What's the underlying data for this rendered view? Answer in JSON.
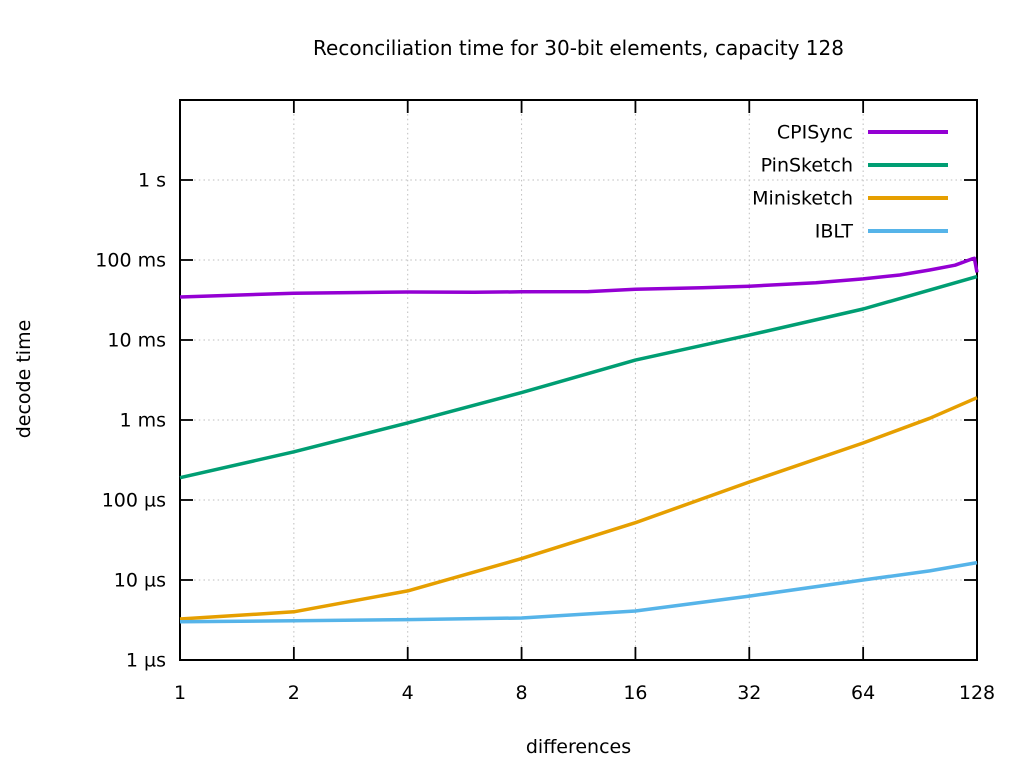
{
  "chart_data": {
    "type": "line",
    "title": "Reconciliation time for 30-bit elements, capacity 128",
    "xlabel": "differences",
    "ylabel": "decode time",
    "x_scale": "log2",
    "y_scale": "log10",
    "x_range": [
      1,
      128
    ],
    "y_range_microseconds": [
      1,
      10000000
    ],
    "grid": true,
    "legend_position": "top-right-inside",
    "x_ticks": [
      {
        "value": 1,
        "label": "1"
      },
      {
        "value": 2,
        "label": "2"
      },
      {
        "value": 4,
        "label": "4"
      },
      {
        "value": 8,
        "label": "8"
      },
      {
        "value": 16,
        "label": "16"
      },
      {
        "value": 32,
        "label": "32"
      },
      {
        "value": 64,
        "label": "64"
      },
      {
        "value": 128,
        "label": "128"
      }
    ],
    "y_ticks": [
      {
        "value_us": 1000000,
        "label": "1 s"
      },
      {
        "value_us": 100000,
        "label": "100 ms"
      },
      {
        "value_us": 10000,
        "label": "10 ms"
      },
      {
        "value_us": 1000,
        "label": "1 ms"
      },
      {
        "value_us": 100,
        "label": "100 µs"
      },
      {
        "value_us": 10,
        "label": "10 µs"
      },
      {
        "value_us": 1,
        "label": "1 µs"
      }
    ],
    "series": [
      {
        "name": "CPISync",
        "color": "#9400d3",
        "points_x_vs_us": [
          [
            1,
            34500
          ],
          [
            2,
            38500
          ],
          [
            3,
            39200
          ],
          [
            4,
            39800
          ],
          [
            6,
            39500
          ],
          [
            8,
            40000
          ],
          [
            12,
            40300
          ],
          [
            16,
            43000
          ],
          [
            24,
            45000
          ],
          [
            32,
            47000
          ],
          [
            48,
            52000
          ],
          [
            64,
            58000
          ],
          [
            80,
            65000
          ],
          [
            96,
            75000
          ],
          [
            112,
            86000
          ],
          [
            124,
            103000
          ],
          [
            126,
            105000
          ],
          [
            128,
            70000
          ]
        ]
      },
      {
        "name": "PinSketch",
        "color": "#009e73",
        "points_x_vs_us": [
          [
            1,
            190
          ],
          [
            2,
            400
          ],
          [
            4,
            920
          ],
          [
            8,
            2200
          ],
          [
            16,
            5600
          ],
          [
            32,
            11500
          ],
          [
            64,
            24400
          ],
          [
            96,
            42000
          ],
          [
            128,
            62000
          ]
        ]
      },
      {
        "name": "Minisketch",
        "color": "#e69f00",
        "points_x_vs_us": [
          [
            1,
            3.25
          ],
          [
            2,
            4.0
          ],
          [
            4,
            7.3
          ],
          [
            8,
            18.5
          ],
          [
            16,
            52
          ],
          [
            32,
            168
          ],
          [
            64,
            516
          ],
          [
            96,
            1050
          ],
          [
            128,
            1900
          ]
        ]
      },
      {
        "name": "IBLT",
        "color": "#56b4e9",
        "points_x_vs_us": [
          [
            1,
            3.0
          ],
          [
            2,
            3.1
          ],
          [
            4,
            3.2
          ],
          [
            8,
            3.35
          ],
          [
            16,
            4.1
          ],
          [
            32,
            6.3
          ],
          [
            64,
            10
          ],
          [
            96,
            13
          ],
          [
            128,
            16.5
          ]
        ]
      }
    ]
  }
}
